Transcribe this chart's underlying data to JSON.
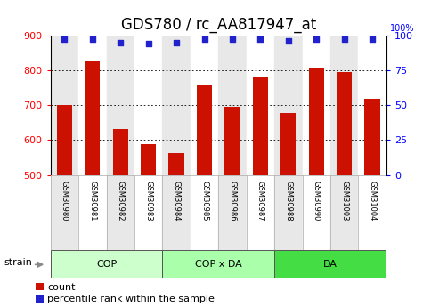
{
  "title": "GDS780 / rc_AA817947_at",
  "samples": [
    "GSM30980",
    "GSM30981",
    "GSM30982",
    "GSM30983",
    "GSM30984",
    "GSM30985",
    "GSM30986",
    "GSM30987",
    "GSM30988",
    "GSM30990",
    "GSM31003",
    "GSM31004"
  ],
  "counts": [
    700,
    825,
    632,
    588,
    562,
    760,
    695,
    782,
    678,
    808,
    795,
    717
  ],
  "percentiles": [
    97,
    97,
    95,
    94,
    95,
    97,
    97,
    97,
    96,
    97,
    97,
    97
  ],
  "groups": [
    {
      "label": "COP",
      "start": 0,
      "end": 3,
      "color": "#CCFFCC"
    },
    {
      "label": "COP x DA",
      "start": 4,
      "end": 7,
      "color": "#AAFFAA"
    },
    {
      "label": "DA",
      "start": 8,
      "end": 11,
      "color": "#44DD44"
    }
  ],
  "ylim_left": [
    500,
    900
  ],
  "ylim_right": [
    0,
    100
  ],
  "yticks_left": [
    500,
    600,
    700,
    800,
    900
  ],
  "yticks_right": [
    0,
    25,
    50,
    75,
    100
  ],
  "bar_color": "#CC1100",
  "dot_color": "#2222CC",
  "col_bg_even": "#E8E8E8",
  "col_bg_odd": "#FFFFFF",
  "legend_count_label": "count",
  "legend_pct_label": "percentile rank within the sample",
  "strain_label": "strain",
  "title_fontsize": 12,
  "tick_fontsize": 8,
  "sample_fontsize": 6,
  "group_fontsize": 8,
  "legend_fontsize": 8
}
